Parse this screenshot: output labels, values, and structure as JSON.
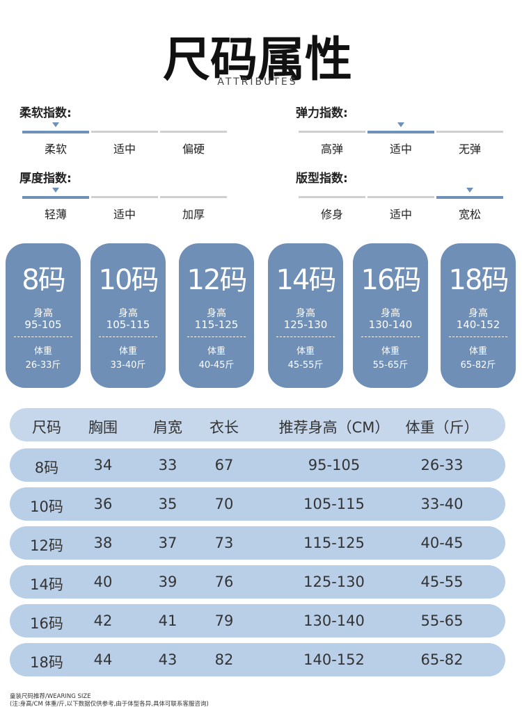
{
  "header": {
    "title": "尺码属性",
    "subtitle": "ATTRIBUTES"
  },
  "attributes": [
    {
      "label": "柔软指数:",
      "options": [
        "柔软",
        "适中",
        "偏硬"
      ],
      "selected": 0
    },
    {
      "label": "弹力指数:",
      "options": [
        "高弹",
        "适中",
        "无弹"
      ],
      "selected": 1
    },
    {
      "label": "厚度指数:",
      "options": [
        "轻薄",
        "适中",
        "加厚"
      ],
      "selected": 0
    },
    {
      "label": "版型指数:",
      "options": [
        "修身",
        "适中",
        "宽松"
      ],
      "selected": 2
    }
  ],
  "cards": [
    {
      "size": "8码",
      "height_label": "身高",
      "height": "95-105",
      "weight_label": "体重",
      "weight": "26-33斤"
    },
    {
      "size": "10码",
      "height_label": "身高",
      "height": "105-115",
      "weight_label": "体重",
      "weight": "33-40斤"
    },
    {
      "size": "12码",
      "height_label": "身高",
      "height": "115-125",
      "weight_label": "体重",
      "weight": "40-45斤"
    },
    {
      "size": "14码",
      "height_label": "身高",
      "height": "125-130",
      "weight_label": "体重",
      "weight": "45-55斤"
    },
    {
      "size": "16码",
      "height_label": "身高",
      "height": "130-140",
      "weight_label": "体重",
      "weight": "55-65斤"
    },
    {
      "size": "18码",
      "height_label": "身高",
      "height": "140-152",
      "weight_label": "体重",
      "weight": "65-82斤"
    }
  ],
  "table": {
    "header": [
      "尺码",
      "胸围",
      "肩宽",
      "衣长",
      "推荐身高（CM）",
      "体重（斤）"
    ],
    "rows": [
      [
        "8码",
        "34",
        "33",
        "67",
        "95-105",
        "26-33"
      ],
      [
        "10码",
        "36",
        "35",
        "70",
        "105-115",
        "33-40"
      ],
      [
        "12码",
        "38",
        "37",
        "73",
        "115-125",
        "40-45"
      ],
      [
        "14码",
        "40",
        "39",
        "76",
        "125-130",
        "45-55"
      ],
      [
        "16码",
        "42",
        "41",
        "79",
        "130-140",
        "55-65"
      ],
      [
        "18码",
        "44",
        "43",
        "82",
        "140-152",
        "65-82"
      ]
    ]
  },
  "footer": [
    "童装尺码推荐/WEARING SIZE",
    "(注:身高/CM 体重/斤,以下数据仅供参考,由于体型各异,具体可联系客服咨询)"
  ]
}
